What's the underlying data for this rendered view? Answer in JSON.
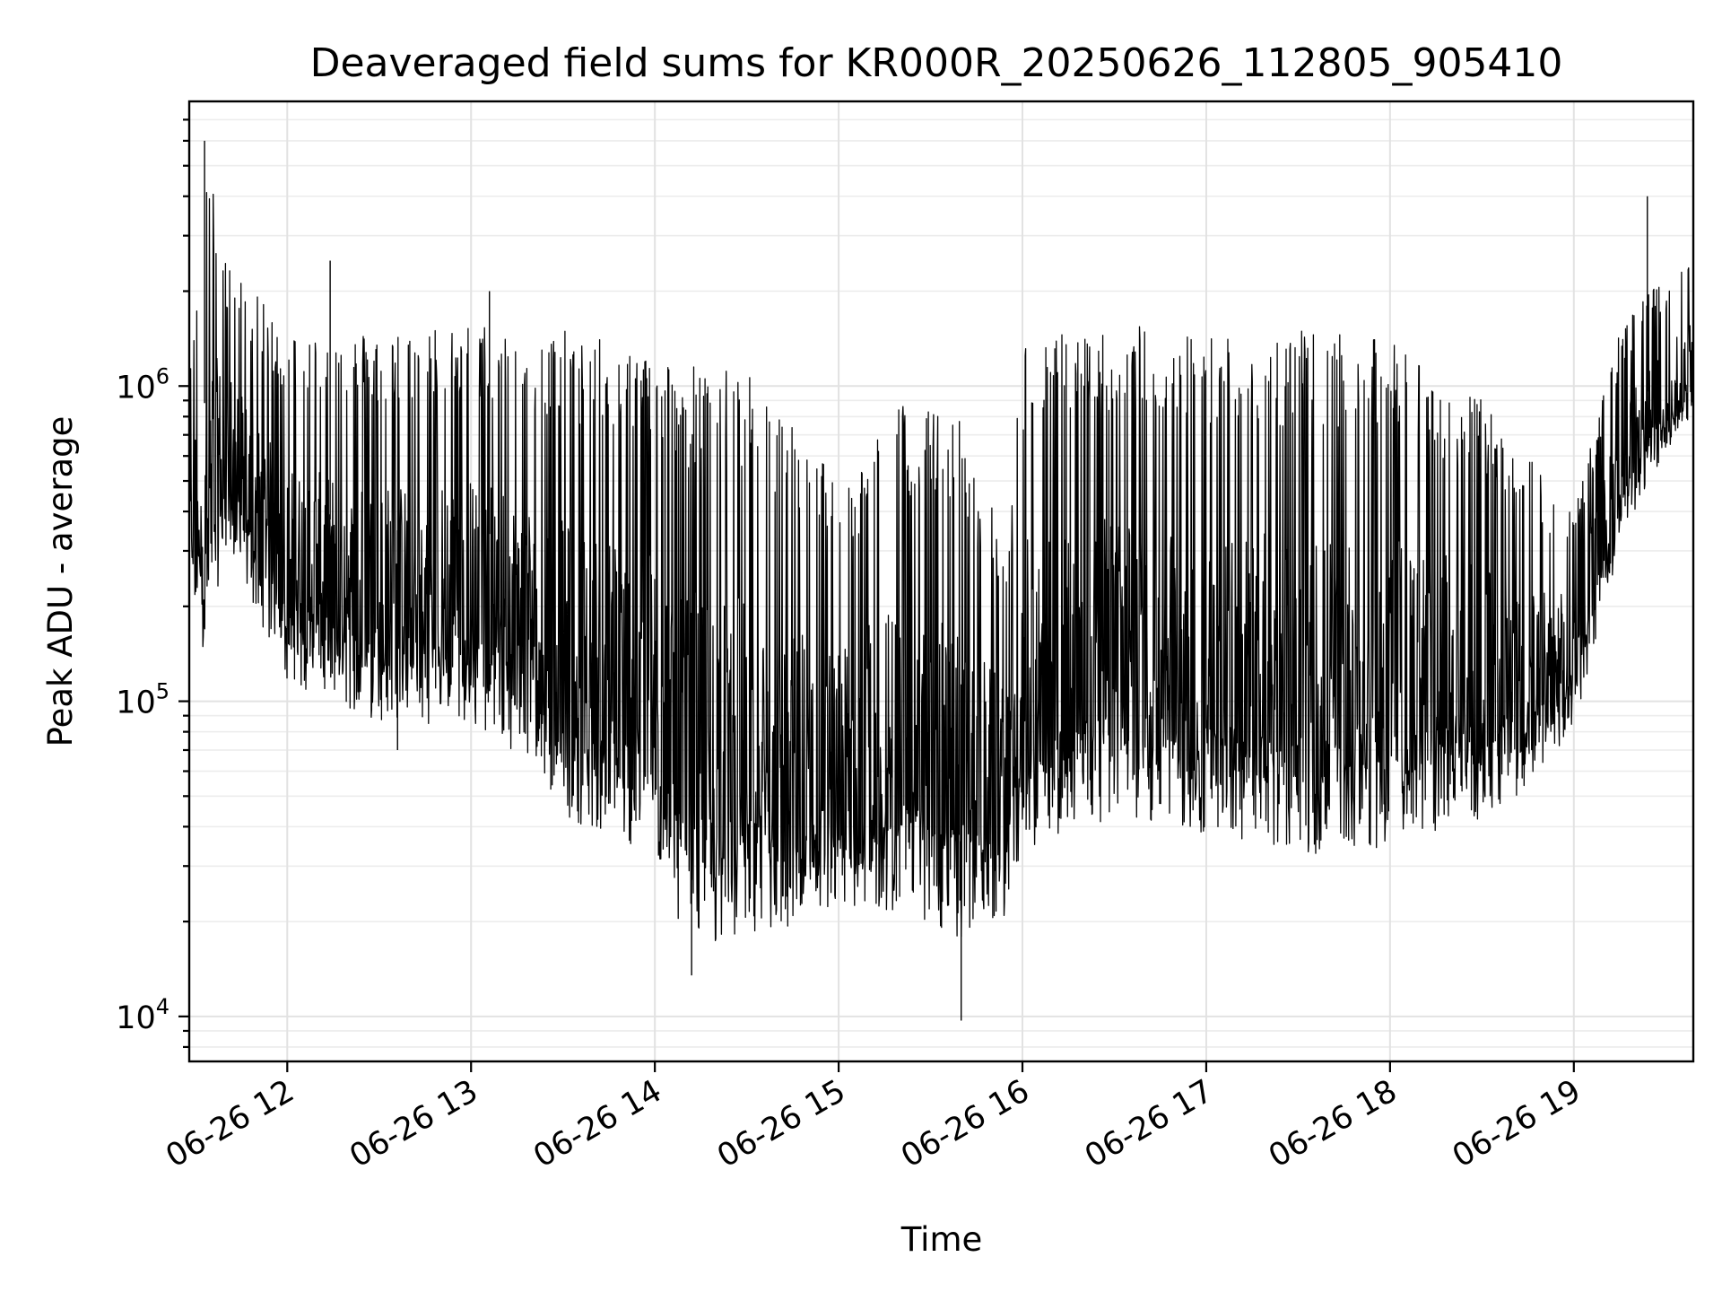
{
  "chart_data": {
    "type": "line",
    "title": "Deaveraged field sums for KR000R_20250626_112805_905410",
    "xlabel": "Time",
    "ylabel": "Peak ADU - average",
    "yscale": "log",
    "ylim": [
      7200,
      8000000
    ],
    "xlim": [
      "2025-06-26 11:28",
      "2025-06-26 19:39"
    ],
    "grid": true,
    "legend": "none",
    "line_color": "#000000",
    "x_ticks": [
      {
        "value": "2025-06-26 12:00",
        "label": "06-26 12"
      },
      {
        "value": "2025-06-26 13:00",
        "label": "06-26 13"
      },
      {
        "value": "2025-06-26 14:00",
        "label": "06-26 14"
      },
      {
        "value": "2025-06-26 15:00",
        "label": "06-26 15"
      },
      {
        "value": "2025-06-26 16:00",
        "label": "06-26 16"
      },
      {
        "value": "2025-06-26 17:00",
        "label": "06-26 17"
      },
      {
        "value": "2025-06-26 18:00",
        "label": "06-26 18"
      },
      {
        "value": "2025-06-26 19:00",
        "label": "06-26 19"
      }
    ],
    "y_ticks": [
      {
        "value": 10000,
        "base": "10",
        "exp": "4"
      },
      {
        "value": 100000,
        "base": "10",
        "exp": "5"
      },
      {
        "value": 1000000,
        "base": "10",
        "exp": "6"
      }
    ],
    "series": [
      {
        "envelope": [
          {
            "t": "2025-06-26 11:28",
            "low": 200000,
            "high": 1000000
          },
          {
            "t": "2025-06-26 11:33",
            "low": 130000,
            "high": 6000000
          },
          {
            "t": "2025-06-26 11:40",
            "low": 300000,
            "high": 2500000
          },
          {
            "t": "2025-06-26 12:00",
            "low": 110000,
            "high": 1500000
          },
          {
            "t": "2025-06-26 12:30",
            "low": 80000,
            "high": 1500000
          },
          {
            "t": "2025-06-26 13:00",
            "low": 80000,
            "high": 1600000
          },
          {
            "t": "2025-06-26 13:20",
            "low": 60000,
            "high": 1500000
          },
          {
            "t": "2025-06-26 13:30",
            "low": 40000,
            "high": 1500000
          },
          {
            "t": "2025-06-26 14:00",
            "low": 30000,
            "high": 1300000
          },
          {
            "t": "2025-06-26 14:10",
            "low": 16000,
            "high": 1200000
          },
          {
            "t": "2025-06-26 14:30",
            "low": 15000,
            "high": 1100000
          },
          {
            "t": "2025-06-26 14:50",
            "low": 17000,
            "high": 700000
          },
          {
            "t": "2025-06-26 15:00",
            "low": 20000,
            "high": 500000
          },
          {
            "t": "2025-06-26 15:20",
            "low": 20000,
            "high": 900000
          },
          {
            "t": "2025-06-26 15:40",
            "low": 16000,
            "high": 800000
          },
          {
            "t": "2025-06-26 15:55",
            "low": 20000,
            "high": 300000
          },
          {
            "t": "2025-06-26 16:00",
            "low": 30000,
            "high": 1400000
          },
          {
            "t": "2025-06-26 16:30",
            "low": 40000,
            "high": 1600000
          },
          {
            "t": "2025-06-26 17:00",
            "low": 35000,
            "high": 1500000
          },
          {
            "t": "2025-06-26 17:30",
            "low": 30000,
            "high": 1500000
          },
          {
            "t": "2025-06-26 18:00",
            "low": 32000,
            "high": 1400000
          },
          {
            "t": "2025-06-26 18:30",
            "low": 40000,
            "high": 900000
          },
          {
            "t": "2025-06-26 18:45",
            "low": 50000,
            "high": 600000
          },
          {
            "t": "2025-06-26 19:00",
            "low": 80000,
            "high": 400000
          },
          {
            "t": "2025-06-26 19:15",
            "low": 300000,
            "high": 1500000
          },
          {
            "t": "2025-06-26 19:25",
            "low": 500000,
            "high": 2000000
          },
          {
            "t": "2025-06-26 19:39",
            "low": 800000,
            "high": 2500000
          }
        ],
        "spikes": [
          {
            "t": "2025-06-26 11:33",
            "value": 6000000
          },
          {
            "t": "2025-06-26 15:40",
            "value": 9700
          },
          {
            "t": "2025-06-26 19:24",
            "value": 4000000
          },
          {
            "t": "2025-06-26 12:14",
            "value": 2500000
          },
          {
            "t": "2025-06-26 12:36",
            "value": 70000
          },
          {
            "t": "2025-06-26 14:12",
            "value": 13500
          },
          {
            "t": "2025-06-26 13:06",
            "value": 2000000
          }
        ]
      }
    ]
  }
}
